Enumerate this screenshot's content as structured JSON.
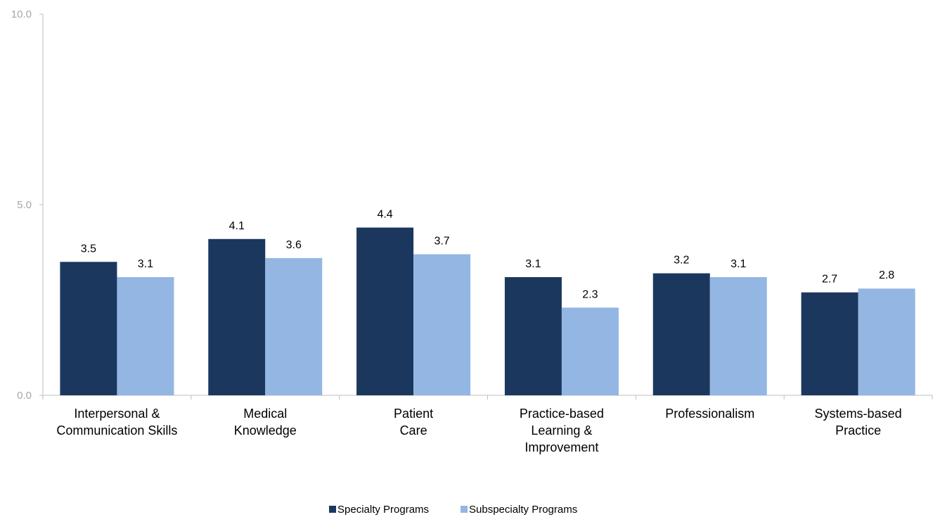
{
  "chart_data": {
    "type": "bar",
    "title": "",
    "xlabel": "",
    "ylabel": "",
    "ylim": [
      0,
      10
    ],
    "yticks": [
      "0.0",
      "5.0",
      "10.0"
    ],
    "grid": false,
    "legend_position": "bottom",
    "categories": [
      [
        "Interpersonal &",
        "Communication Skills"
      ],
      [
        "Medical",
        "Knowledge"
      ],
      [
        "Patient",
        "Care"
      ],
      [
        "Practice-based",
        "Learning &",
        "Improvement"
      ],
      [
        "Professionalism"
      ],
      [
        "Systems-based",
        "Practice"
      ]
    ],
    "series": [
      {
        "name": "Specialty Programs",
        "color": "#1b375e",
        "values": [
          3.5,
          4.1,
          4.4,
          3.1,
          3.2,
          2.7
        ]
      },
      {
        "name": "Subspecialty Programs",
        "color": "#94b6e3",
        "values": [
          3.1,
          3.6,
          3.7,
          2.3,
          3.1,
          2.8
        ]
      }
    ]
  }
}
